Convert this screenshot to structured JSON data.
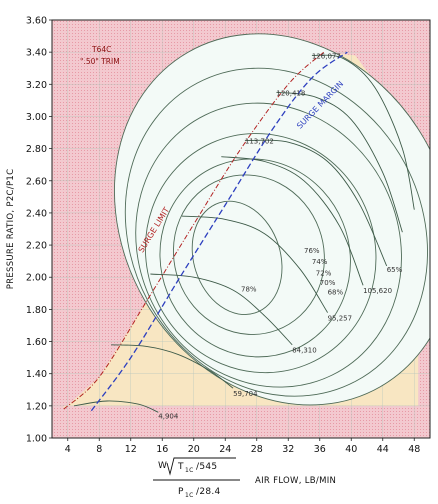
{
  "chart_data": {
    "type": "line",
    "title": "",
    "notes": [
      "T64C",
      "\".50\" TRIM"
    ],
    "xlabel": "AIR FLOW, LB/MIN",
    "xlabel_formula": {
      "numerator_w": "W",
      "numerator_t": "T",
      "numerator_sub": "1C",
      "numerator_rest": "/545",
      "denominator_p": "P",
      "denominator_sub": "1C",
      "denominator_rest": "/28.4"
    },
    "ylabel": "PRESSURE RATIO, P2C/P1C",
    "xlim": [
      2,
      50
    ],
    "ylim": [
      1.0,
      3.6
    ],
    "x_ticks": [
      "4",
      "8",
      "12",
      "16",
      "20",
      "24",
      "28",
      "32",
      "36",
      "40",
      "44",
      "48"
    ],
    "y_ticks": [
      "1.00",
      "1.20",
      "1.40",
      "1.60",
      "1.80",
      "2.00",
      "2.20",
      "2.40",
      "2.60",
      "2.80",
      "3.00",
      "3.20",
      "3.40",
      "3.60"
    ],
    "grid": true,
    "colors": {
      "unstable_region": "#f3c9cf",
      "low_efficiency_region": "#f8e6c2",
      "map_region": "#f3faf7",
      "speed_line": "#3d5a48",
      "efficiency_island": "#4f6b58",
      "surge_limit": "#b22222",
      "surge_margin": "#2d3fbf",
      "annotation": "#8a1010"
    },
    "surge_limit": {
      "label": "SURGE LIMIT",
      "points": [
        [
          3.5,
          1.18
        ],
        [
          8,
          1.38
        ],
        [
          14,
          1.85
        ],
        [
          20,
          2.33
        ],
        [
          26,
          2.8
        ],
        [
          32,
          3.2
        ],
        [
          36.5,
          3.4
        ]
      ]
    },
    "surge_margin": {
      "label": "SURGE MARGIN",
      "points": [
        [
          7,
          1.17
        ],
        [
          12,
          1.5
        ],
        [
          18,
          1.98
        ],
        [
          24,
          2.45
        ],
        [
          30,
          2.92
        ],
        [
          35,
          3.24
        ],
        [
          39.5,
          3.4
        ]
      ]
    },
    "speed_lines": [
      {
        "label": "4,904",
        "label_at": [
          15.5,
          1.14
        ],
        "points": [
          [
            4.8,
            1.2
          ],
          [
            9,
            1.23
          ],
          [
            13,
            1.21
          ],
          [
            15.5,
            1.16
          ]
        ]
      },
      {
        "label": "59,704",
        "label_at": [
          25,
          1.28
        ],
        "points": [
          [
            9.5,
            1.58
          ],
          [
            14,
            1.57
          ],
          [
            18,
            1.52
          ],
          [
            22,
            1.42
          ],
          [
            25,
            1.31
          ]
        ]
      },
      {
        "label": "84,310",
        "label_at": [
          32.5,
          1.55
        ],
        "points": [
          [
            14.5,
            2.02
          ],
          [
            20,
            2.0
          ],
          [
            25,
            1.92
          ],
          [
            29,
            1.76
          ],
          [
            32.5,
            1.58
          ]
        ]
      },
      {
        "label": "95,257",
        "label_at": [
          37,
          1.75
        ],
        "points": [
          [
            18.5,
            2.38
          ],
          [
            24,
            2.36
          ],
          [
            29,
            2.27
          ],
          [
            33.5,
            2.05
          ],
          [
            37,
            1.78
          ]
        ]
      },
      {
        "label": "105,620",
        "label_at": [
          41.5,
          1.92
        ],
        "points": [
          [
            23.5,
            2.75
          ],
          [
            29,
            2.72
          ],
          [
            34,
            2.6
          ],
          [
            38.5,
            2.32
          ],
          [
            41.5,
            1.95
          ]
        ]
      },
      {
        "label": "113,702",
        "label_at": [
          26.5,
          2.85
        ],
        "points": [
          [
            26.5,
            2.85
          ],
          [
            32,
            2.84
          ],
          [
            37,
            2.72
          ],
          [
            41,
            2.46
          ],
          [
            44.5,
            2.07
          ]
        ]
      },
      {
        "label": "120,418",
        "label_at": [
          30.5,
          3.15
        ],
        "points": [
          [
            30.5,
            3.15
          ],
          [
            35.5,
            3.12
          ],
          [
            40,
            2.98
          ],
          [
            44,
            2.65
          ],
          [
            46.5,
            2.28
          ]
        ]
      },
      {
        "label": "126,077",
        "label_at": [
          35,
          3.38
        ],
        "points": [
          [
            35,
            3.38
          ],
          [
            39,
            3.36
          ],
          [
            43,
            3.18
          ],
          [
            46.5,
            2.8
          ],
          [
            48,
            2.42
          ]
        ]
      }
    ],
    "efficiency_islands": [
      {
        "label": "78%",
        "label_at": [
          26,
          1.93
        ],
        "center": [
          25.5,
          2.12
        ],
        "rx": 5.5,
        "ry": 0.36,
        "tilt_deg": 18
      },
      {
        "label": "76%",
        "label_at": [
          34,
          2.17
        ],
        "center": [
          27,
          2.14
        ],
        "rx": 9.5,
        "ry": 0.5,
        "tilt_deg": 20
      },
      {
        "label": "74%",
        "label_at": [
          35,
          2.1
        ],
        "center": [
          27.8,
          2.12
        ],
        "rx": 12,
        "ry": 0.62,
        "tilt_deg": 22
      },
      {
        "label": "72%",
        "label_at": [
          35.5,
          2.03
        ],
        "center": [
          28.5,
          2.15
        ],
        "rx": 14.5,
        "ry": 0.75,
        "tilt_deg": 24
      },
      {
        "label": "70%",
        "label_at": [
          36,
          1.97
        ],
        "center": [
          29.5,
          2.2
        ],
        "rx": 16.5,
        "ry": 0.9,
        "tilt_deg": 26
      },
      {
        "label": "68%",
        "label_at": [
          37,
          1.91
        ],
        "center": [
          30.5,
          2.28
        ],
        "rx": 18.5,
        "ry": 1.05,
        "tilt_deg": 28
      },
      {
        "label": "65%",
        "label_at": [
          44.5,
          2.05
        ],
        "center": [
          31.5,
          2.36
        ],
        "rx": 20.5,
        "ry": 1.2,
        "tilt_deg": 30
      }
    ]
  }
}
